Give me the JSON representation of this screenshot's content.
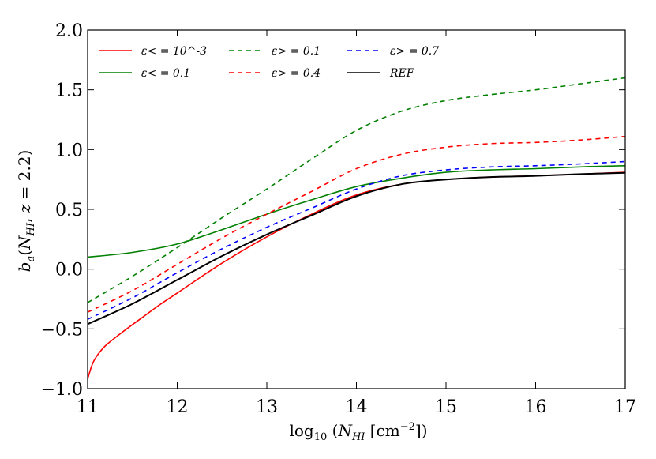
{
  "chart_data": {
    "type": "line",
    "title": "",
    "xlabel": "log10 (N_HI [cm^-2])",
    "ylabel": "b_a(N_HI, z = 2.2)",
    "xlim": [
      11,
      17
    ],
    "ylim": [
      -1.0,
      2.0
    ],
    "xticks": [
      "11",
      "12",
      "13",
      "14",
      "15",
      "16",
      "17"
    ],
    "yticks": [
      "−1.0",
      "−0.5",
      "0.0",
      "0.5",
      "1.0",
      "1.5",
      "2.0"
    ],
    "legend_position": "top-left",
    "series": [
      {
        "name": "ε< = 10^-3",
        "color": "#ff0000",
        "style": "solid",
        "x": [
          11.0,
          11.05,
          11.1,
          11.2,
          11.4,
          11.6,
          11.8,
          12.0,
          12.5,
          13.0,
          13.5,
          14.0,
          14.5,
          15.0,
          15.5,
          16.0,
          16.5,
          17.0
        ],
        "y": [
          -0.92,
          -0.8,
          -0.73,
          -0.64,
          -0.52,
          -0.41,
          -0.3,
          -0.2,
          0.05,
          0.27,
          0.46,
          0.62,
          0.71,
          0.75,
          0.77,
          0.78,
          0.795,
          0.81
        ]
      },
      {
        "name": "ε< = 0.1",
        "color": "#008000",
        "style": "solid",
        "x": [
          11.0,
          11.5,
          12.0,
          12.5,
          13.0,
          13.5,
          14.0,
          14.5,
          15.0,
          15.5,
          16.0,
          16.5,
          17.0
        ],
        "y": [
          0.1,
          0.14,
          0.21,
          0.33,
          0.46,
          0.58,
          0.69,
          0.76,
          0.81,
          0.83,
          0.84,
          0.855,
          0.865
        ]
      },
      {
        "name": "ε> = 0.1",
        "color": "#008000",
        "style": "dashed",
        "x": [
          11.0,
          11.5,
          12.0,
          12.5,
          13.0,
          13.5,
          14.0,
          14.5,
          15.0,
          15.5,
          16.0,
          16.5,
          17.0
        ],
        "y": [
          -0.28,
          -0.06,
          0.18,
          0.43,
          0.67,
          0.92,
          1.16,
          1.32,
          1.41,
          1.46,
          1.5,
          1.55,
          1.6
        ]
      },
      {
        "name": "ε> = 0.4",
        "color": "#ff0000",
        "style": "dashed",
        "x": [
          11.0,
          11.5,
          12.0,
          12.5,
          13.0,
          13.5,
          14.0,
          14.5,
          15.0,
          15.5,
          16.0,
          16.5,
          17.0
        ],
        "y": [
          -0.36,
          -0.18,
          0.04,
          0.26,
          0.46,
          0.65,
          0.84,
          0.96,
          1.02,
          1.05,
          1.06,
          1.08,
          1.11
        ]
      },
      {
        "name": "ε> = 0.7",
        "color": "#0000ff",
        "style": "dashed",
        "x": [
          11.0,
          11.5,
          12.0,
          12.5,
          13.0,
          13.5,
          14.0,
          14.5,
          15.0,
          15.5,
          16.0,
          16.5,
          17.0
        ],
        "y": [
          -0.42,
          -0.24,
          -0.03,
          0.17,
          0.35,
          0.51,
          0.67,
          0.78,
          0.83,
          0.855,
          0.865,
          0.88,
          0.9
        ]
      },
      {
        "name": "REF",
        "color": "#000000",
        "style": "solid",
        "x": [
          11.0,
          11.5,
          12.0,
          12.5,
          13.0,
          13.5,
          14.0,
          14.5,
          15.0,
          15.5,
          16.0,
          16.5,
          17.0
        ],
        "y": [
          -0.46,
          -0.29,
          -0.09,
          0.11,
          0.29,
          0.45,
          0.61,
          0.71,
          0.75,
          0.77,
          0.78,
          0.795,
          0.805
        ]
      }
    ]
  }
}
